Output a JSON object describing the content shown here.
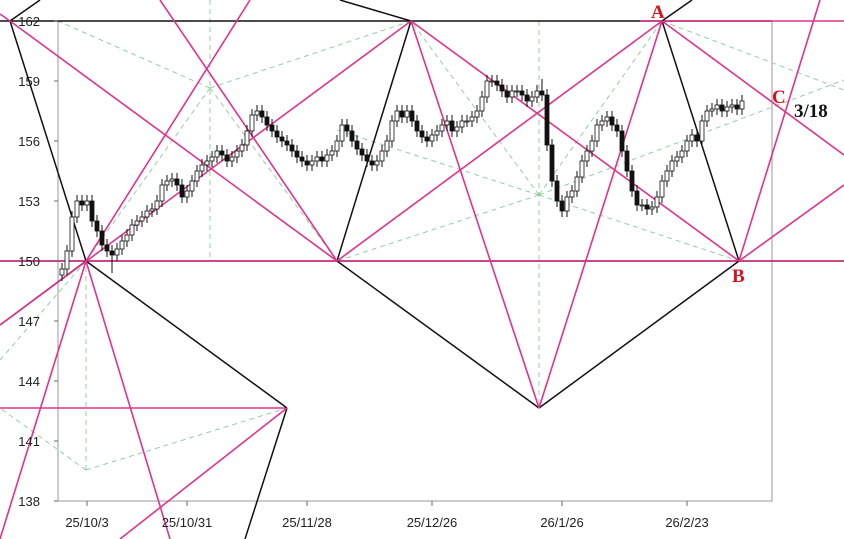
{
  "chart_data": {
    "type": "candlestick",
    "ylim": [
      138,
      162
    ],
    "yticks": [
      138,
      141,
      144,
      147,
      150,
      153,
      156,
      159,
      162
    ],
    "annotations": [
      "A",
      "B",
      "C",
      "3/18"
    ],
    "categories": [
      null,
      null,
      null,
      null,
      null,
      "25/10/3",
      null,
      null,
      null,
      null,
      null,
      null,
      null,
      null,
      null,
      null,
      null,
      null,
      null,
      null,
      null,
      null,
      null,
      null,
      null,
      "25/10/31",
      null,
      null,
      null,
      null,
      null,
      null,
      null,
      null,
      null,
      null,
      null,
      null,
      null,
      null,
      null,
      null,
      null,
      null,
      null,
      null,
      null,
      null,
      null,
      "25/11/28",
      null,
      null,
      null,
      null,
      null,
      null,
      null,
      null,
      null,
      null,
      null,
      null,
      null,
      null,
      null,
      null,
      null,
      null,
      null,
      null,
      null,
      null,
      null,
      null,
      "25/12/26",
      null,
      null,
      null,
      null,
      null,
      null,
      null,
      null,
      null,
      null,
      null,
      null,
      null,
      null,
      null,
      null,
      null,
      null,
      null,
      null,
      null,
      null,
      null,
      null,
      null,
      "26/1/26",
      null,
      null,
      null,
      null,
      null,
      null,
      null,
      null,
      null,
      null,
      null,
      null,
      null,
      null,
      null,
      null,
      null,
      null,
      null,
      null,
      null,
      null,
      null,
      null,
      "26/2/23",
      null,
      null,
      null,
      null,
      null,
      null,
      null,
      null,
      null,
      null,
      null
    ],
    "ohlc": [
      [
        149.3,
        149.9,
        149.0,
        149.6
      ],
      [
        149.6,
        150.8,
        149.3,
        150.5
      ],
      [
        150.5,
        152.5,
        150.2,
        152.2
      ],
      [
        152.2,
        153.3,
        151.9,
        153
      ],
      [
        153,
        153.3,
        152.5,
        152.8
      ],
      [
        152.8,
        153.3,
        152.5,
        153
      ],
      [
        153,
        153.3,
        151.7,
        152
      ],
      [
        152,
        152.3,
        151.2,
        151.5
      ],
      [
        151.5,
        151.8,
        150.5,
        150.8
      ],
      [
        150.8,
        151.1,
        150.2,
        150.5
      ],
      [
        150.5,
        150.8,
        149.4,
        150.3
      ],
      [
        150.3,
        150.9,
        150,
        150.6
      ],
      [
        150.6,
        151.3,
        150.3,
        151
      ],
      [
        151,
        151.6,
        150.7,
        151.3
      ],
      [
        151.3,
        152.1,
        151,
        151.8
      ],
      [
        151.8,
        152.3,
        151.5,
        152
      ],
      [
        152,
        152.5,
        151.7,
        152.2
      ],
      [
        152.2,
        152.8,
        151.9,
        152.5
      ],
      [
        152.5,
        152.9,
        152.2,
        152.6
      ],
      [
        152.6,
        153.3,
        152.3,
        153
      ],
      [
        153,
        154.1,
        152.7,
        153.8
      ],
      [
        153.8,
        154.3,
        153.5,
        154
      ],
      [
        154,
        154.4,
        153.7,
        154.1
      ],
      [
        154.1,
        154.4,
        153.5,
        153.8
      ],
      [
        153.8,
        154.1,
        152.9,
        153.2
      ],
      [
        153.2,
        153.8,
        152.9,
        153.5
      ],
      [
        153.5,
        154.3,
        153.2,
        154
      ],
      [
        154,
        154.8,
        153.7,
        154.5
      ],
      [
        154.5,
        155.1,
        154.2,
        154.8
      ],
      [
        154.8,
        155.3,
        154.5,
        155
      ],
      [
        155,
        155.5,
        154.7,
        155.2
      ],
      [
        155.2,
        155.8,
        154.9,
        155.5
      ],
      [
        155.5,
        155.8,
        155,
        155.3
      ],
      [
        155.3,
        155.6,
        154.7,
        155
      ],
      [
        155,
        155.5,
        154.7,
        155.2
      ],
      [
        155.2,
        155.8,
        154.9,
        155.5
      ],
      [
        155.5,
        156.1,
        155.2,
        155.8
      ],
      [
        155.8,
        156.8,
        155.5,
        156.5
      ],
      [
        156.5,
        157.6,
        156.2,
        157.3
      ],
      [
        157.3,
        157.8,
        157,
        157.5
      ],
      [
        157.5,
        157.8,
        156.9,
        157.2
      ],
      [
        157.2,
        157.5,
        156.5,
        156.8
      ],
      [
        156.8,
        157.1,
        156.2,
        156.5
      ],
      [
        156.5,
        156.8,
        155.9,
        156.2
      ],
      [
        156.2,
        156.5,
        155.7,
        156
      ],
      [
        156,
        156.3,
        155.5,
        155.8
      ],
      [
        155.8,
        156.1,
        155.2,
        155.5
      ],
      [
        155.5,
        155.8,
        154.9,
        155.2
      ],
      [
        155.2,
        155.5,
        154.7,
        155
      ],
      [
        155,
        155.3,
        154.5,
        154.8
      ],
      [
        154.8,
        155.3,
        154.5,
        155
      ],
      [
        155,
        155.5,
        154.7,
        155.2
      ],
      [
        155.2,
        155.5,
        154.7,
        155
      ],
      [
        155,
        155.6,
        154.7,
        155.3
      ],
      [
        155.3,
        155.8,
        155,
        155.5
      ],
      [
        155.5,
        156.3,
        155.2,
        156
      ],
      [
        156,
        157.1,
        155.7,
        156.8
      ],
      [
        156.8,
        157.1,
        156.2,
        156.5
      ],
      [
        156.5,
        156.8,
        155.7,
        156
      ],
      [
        156,
        156.3,
        155.3,
        155.6
      ],
      [
        155.6,
        155.9,
        155,
        155.3
      ],
      [
        155.3,
        155.6,
        154.7,
        155
      ],
      [
        155,
        155.3,
        154.5,
        154.8
      ],
      [
        154.8,
        155.3,
        154.5,
        155
      ],
      [
        155,
        155.8,
        154.7,
        155.5
      ],
      [
        155.5,
        156.3,
        155.2,
        156
      ],
      [
        156,
        157.3,
        155.7,
        157
      ],
      [
        157,
        157.8,
        156.7,
        157.5
      ],
      [
        157.5,
        157.8,
        156.9,
        157.2
      ],
      [
        157.2,
        157.8,
        156.9,
        157.5
      ],
      [
        157.5,
        157.8,
        156.7,
        157
      ],
      [
        157,
        157.3,
        156.2,
        156.5
      ],
      [
        156.5,
        156.8,
        155.9,
        156.2
      ],
      [
        156.2,
        156.5,
        155.7,
        156
      ],
      [
        156,
        156.6,
        155.7,
        156.3
      ],
      [
        156.3,
        156.8,
        156,
        156.5
      ],
      [
        156.5,
        157.1,
        156.2,
        156.8
      ],
      [
        156.8,
        157.3,
        156.5,
        157
      ],
      [
        157,
        157.3,
        156.2,
        156.5
      ],
      [
        156.5,
        157,
        156.2,
        156.7
      ],
      [
        156.7,
        157.3,
        156.4,
        157
      ],
      [
        157,
        157.3,
        156.7,
        157
      ],
      [
        157,
        157.5,
        156.7,
        157.2
      ],
      [
        157.2,
        157.8,
        156.9,
        157.5
      ],
      [
        157.5,
        158.5,
        157.2,
        158.2
      ],
      [
        158.2,
        159.3,
        157.9,
        159
      ],
      [
        159,
        159.3,
        158.7,
        159
      ],
      [
        159,
        159.3,
        158.5,
        158.8
      ],
      [
        158.8,
        159.1,
        158.2,
        158.5
      ],
      [
        158.5,
        158.8,
        157.9,
        158.2
      ],
      [
        158.2,
        158.8,
        157.9,
        158.5
      ],
      [
        158.5,
        158.8,
        158.2,
        158.5
      ],
      [
        158.5,
        158.8,
        158,
        158.3
      ],
      [
        158.3,
        158.6,
        157.7,
        158
      ],
      [
        158,
        158.5,
        157.7,
        158.2
      ],
      [
        158.2,
        158.8,
        157.9,
        158.5
      ],
      [
        158.5,
        159.1,
        158,
        158.3
      ],
      [
        158.3,
        158.6,
        155.5,
        155.8
      ],
      [
        155.8,
        156.1,
        153.7,
        154
      ],
      [
        154,
        154.3,
        152.7,
        153
      ],
      [
        153,
        153.3,
        152.2,
        152.5
      ],
      [
        152.5,
        153.5,
        152.2,
        153.2
      ],
      [
        153.2,
        153.8,
        152.9,
        153.5
      ],
      [
        153.5,
        154.5,
        153.2,
        154.2
      ],
      [
        154.2,
        155.3,
        153.9,
        155
      ],
      [
        155,
        155.8,
        154.7,
        155.5
      ],
      [
        155.5,
        156.3,
        155.2,
        156
      ],
      [
        156,
        157.1,
        155.7,
        156.8
      ],
      [
        156.8,
        157.3,
        156.5,
        157
      ],
      [
        157,
        157.5,
        156.7,
        157.2
      ],
      [
        157.2,
        157.5,
        156.5,
        156.8
      ],
      [
        156.8,
        157.1,
        156.2,
        156.5
      ],
      [
        156.5,
        156.8,
        155.2,
        155.5
      ],
      [
        155.5,
        155.8,
        154.2,
        154.5
      ],
      [
        154.5,
        154.8,
        153.2,
        153.5
      ],
      [
        153.5,
        153.8,
        152.5,
        152.8
      ],
      [
        152.8,
        153.1,
        152.5,
        152.8
      ],
      [
        152.8,
        153.1,
        152.3,
        152.6
      ],
      [
        152.6,
        153,
        152.3,
        152.7
      ],
      [
        152.7,
        153.5,
        152.4,
        153.2
      ],
      [
        153.2,
        154.3,
        152.9,
        154
      ],
      [
        154,
        154.8,
        153.7,
        154.5
      ],
      [
        154.5,
        155.3,
        154.2,
        155
      ],
      [
        155,
        155.5,
        154.7,
        155.2
      ],
      [
        155.2,
        155.8,
        154.9,
        155.5
      ],
      [
        155.5,
        156.3,
        155.2,
        156
      ],
      [
        156,
        156.6,
        155.7,
        156.3
      ],
      [
        156.3,
        156.6,
        155.7,
        156
      ],
      [
        156,
        157.3,
        155.7,
        157
      ],
      [
        157,
        157.8,
        156.7,
        157.5
      ],
      [
        157.5,
        157.9,
        157.2,
        157.6
      ],
      [
        157.6,
        158.1,
        157.3,
        157.8
      ],
      [
        157.8,
        158.1,
        157.2,
        157.5
      ],
      [
        157.5,
        158,
        157.2,
        157.7
      ],
      [
        157.7,
        158.1,
        157.4,
        157.8
      ],
      [
        157.8,
        158.1,
        157.3,
        157.6
      ],
      [
        157.6,
        158.3,
        157.3,
        158
      ]
    ]
  }
}
